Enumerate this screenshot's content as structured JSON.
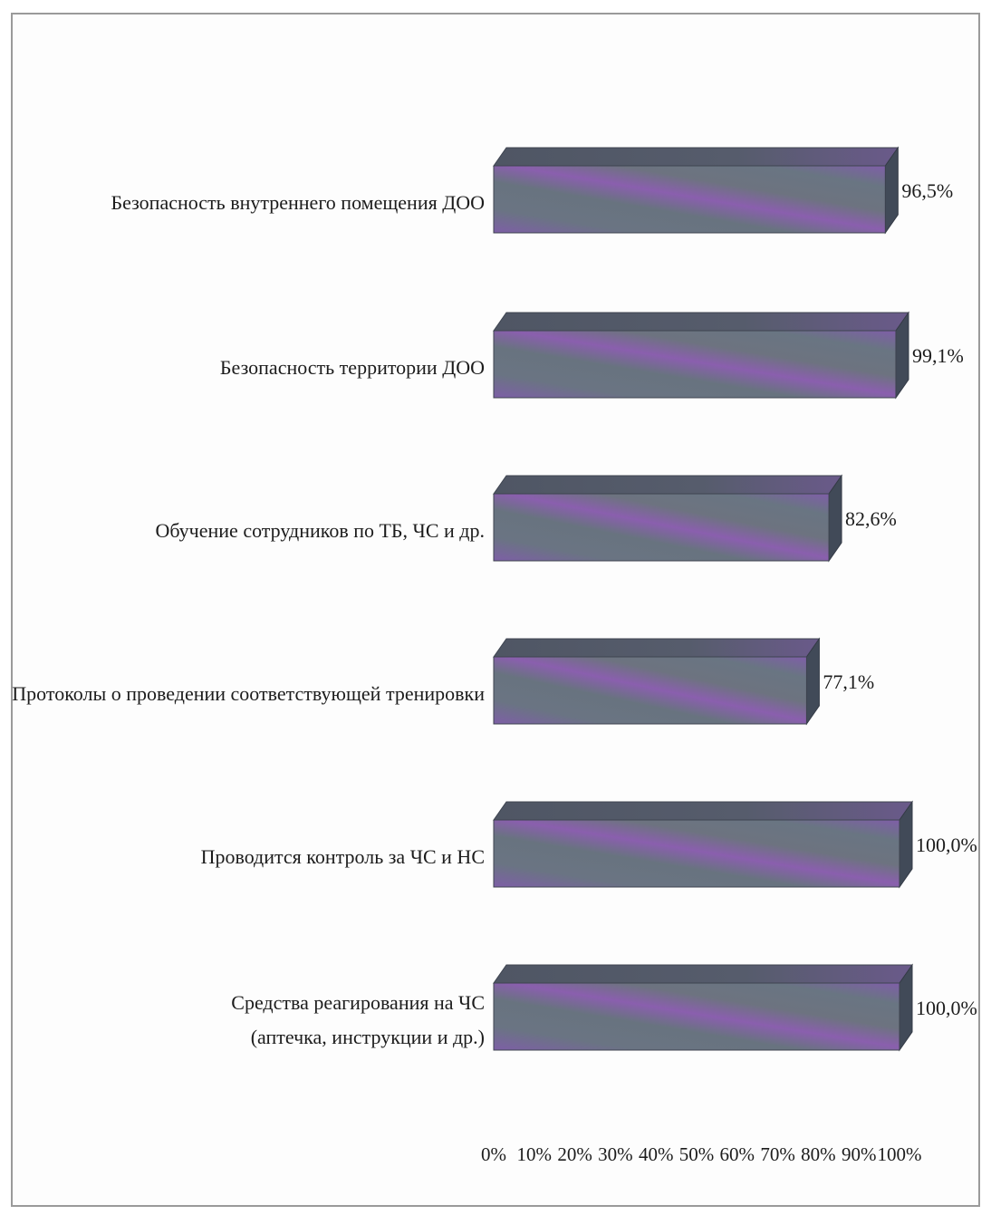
{
  "chart_data": {
    "type": "bar",
    "orientation": "horizontal",
    "style": "3d",
    "categories": [
      [
        "Безопасность внутреннего помещения ДОО"
      ],
      [
        "Безопасность территории ДОО"
      ],
      [
        "Обучение сотрудников по ТБ, ЧС и др."
      ],
      [
        "Протоколы о проведении соответствующей тренировки"
      ],
      [
        "Проводится контроль за ЧС и НС"
      ],
      [
        "Средства реагирования на ЧС",
        "(аптечка, инструкции и др.)"
      ]
    ],
    "values": [
      96.5,
      99.1,
      82.6,
      77.1,
      100.0,
      100.0
    ],
    "value_labels": [
      "96,5%",
      "99,1%",
      "82,6%",
      "77,1%",
      "100,0%",
      "100,0%"
    ],
    "x_ticks": [
      "0%",
      "10%",
      "20%",
      "30%",
      "40%",
      "50%",
      "60%",
      "70%",
      "80%",
      "90%",
      "100%"
    ],
    "xlim": [
      0,
      100
    ],
    "grid": false,
    "legend": "none",
    "colors": {
      "bar_base": "#6a7481",
      "bar_purple": "#8a5fae",
      "bar_top": "#505866",
      "bar_side": "#414a58"
    }
  }
}
